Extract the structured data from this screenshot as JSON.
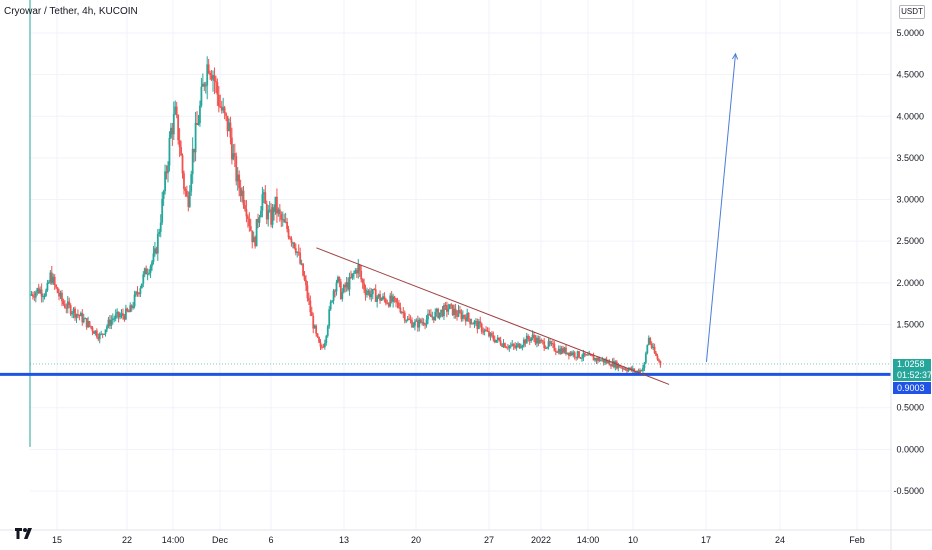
{
  "header": {
    "title": "Cryowar / Tether, 4h, KUCOIN",
    "currency": "USDT"
  },
  "price_tags": {
    "last_price": "1.0258",
    "countdown": "01:52:37",
    "line_price": "0.9003"
  },
  "colors": {
    "up": "#26a69a",
    "down": "#ef5350",
    "hline": "#1e53e5",
    "trend": "#a04040",
    "arrow": "#4a7dd8"
  },
  "chart_data": {
    "type": "candlestick",
    "title": "",
    "xlabel": "",
    "ylabel": "",
    "x_ticks": [
      "15",
      "22",
      "14:00",
      "Dec",
      "6",
      "13",
      "20",
      "27",
      "2022",
      "14:00",
      "10",
      "17",
      "24",
      "Feb"
    ],
    "y_ticks": [
      "5.0000",
      "4.5000",
      "4.0000",
      "3.5000",
      "3.0000",
      "2.5000",
      "2.0000",
      "1.5000",
      "0.5000",
      "0.0000",
      "-0.5000"
    ],
    "ylim": [
      -0.85,
      5.4
    ],
    "x_range": [
      0,
      200
    ],
    "price_path": [
      [
        0,
        1.85
      ],
      [
        2,
        1.92
      ],
      [
        4,
        1.88
      ],
      [
        5,
        2.1
      ],
      [
        6,
        1.95
      ],
      [
        8,
        1.75
      ],
      [
        10,
        1.68
      ],
      [
        12,
        1.6
      ],
      [
        14,
        1.5
      ],
      [
        16,
        1.4
      ],
      [
        17,
        1.35
      ],
      [
        18,
        1.45
      ],
      [
        20,
        1.58
      ],
      [
        22,
        1.6
      ],
      [
        24,
        1.65
      ],
      [
        26,
        1.9
      ],
      [
        28,
        2.15
      ],
      [
        30,
        2.3
      ],
      [
        31,
        2.6
      ],
      [
        32,
        3.0
      ],
      [
        33,
        3.4
      ],
      [
        34,
        3.85
      ],
      [
        35,
        4.0
      ],
      [
        36,
        3.7
      ],
      [
        37,
        3.2
      ],
      [
        38,
        2.95
      ],
      [
        39,
        3.5
      ],
      [
        40,
        3.8
      ],
      [
        41,
        4.1
      ],
      [
        42,
        4.45
      ],
      [
        43,
        4.68
      ],
      [
        44,
        4.55
      ],
      [
        45,
        4.3
      ],
      [
        46,
        4.1
      ],
      [
        47,
        3.95
      ],
      [
        48,
        3.85
      ],
      [
        49,
        3.5
      ],
      [
        50,
        3.2
      ],
      [
        51,
        3.1
      ],
      [
        52,
        2.95
      ],
      [
        53,
        2.7
      ],
      [
        54,
        2.45
      ],
      [
        55,
        2.8
      ],
      [
        56,
        3.05
      ],
      [
        57,
        2.85
      ],
      [
        58,
        2.75
      ],
      [
        59,
        2.95
      ],
      [
        60,
        2.8
      ],
      [
        61,
        2.7
      ],
      [
        62,
        2.65
      ],
      [
        63,
        2.55
      ],
      [
        64,
        2.45
      ],
      [
        65,
        2.25
      ],
      [
        66,
        2.05
      ],
      [
        67,
        1.8
      ],
      [
        68,
        1.55
      ],
      [
        69,
        1.35
      ],
      [
        70,
        1.2
      ],
      [
        71,
        1.3
      ],
      [
        72,
        1.6
      ],
      [
        73,
        1.9
      ],
      [
        74,
        2.05
      ],
      [
        75,
        1.85
      ],
      [
        76,
        1.95
      ],
      [
        77,
        2.0
      ],
      [
        78,
        2.1
      ],
      [
        79,
        2.2
      ],
      [
        80,
        2.0
      ],
      [
        81,
        1.9
      ],
      [
        83,
        1.85
      ],
      [
        85,
        1.8
      ],
      [
        87,
        1.78
      ],
      [
        89,
        1.72
      ],
      [
        91,
        1.55
      ],
      [
        93,
        1.5
      ],
      [
        95,
        1.55
      ],
      [
        97,
        1.6
      ],
      [
        99,
        1.65
      ],
      [
        101,
        1.7
      ],
      [
        103,
        1.62
      ],
      [
        105,
        1.6
      ],
      [
        107,
        1.52
      ],
      [
        109,
        1.45
      ],
      [
        111,
        1.35
      ],
      [
        113,
        1.3
      ],
      [
        115,
        1.25
      ],
      [
        117,
        1.22
      ],
      [
        119,
        1.3
      ],
      [
        121,
        1.35
      ],
      [
        123,
        1.28
      ],
      [
        125,
        1.25
      ],
      [
        127,
        1.2
      ],
      [
        129,
        1.18
      ],
      [
        131,
        1.15
      ],
      [
        133,
        1.12
      ],
      [
        135,
        1.1
      ],
      [
        137,
        1.08
      ],
      [
        139,
        1.05
      ],
      [
        141,
        1.02
      ],
      [
        143,
        0.98
      ],
      [
        145,
        0.95
      ],
      [
        146,
        0.93
      ],
      [
        147,
        0.95
      ],
      [
        148,
        1.0
      ],
      [
        149,
        1.35
      ],
      [
        150,
        1.2
      ],
      [
        151,
        1.1
      ],
      [
        152,
        1.0258
      ]
    ],
    "volatility": 0.04,
    "horizontal_line": 0.9003,
    "trend_line": [
      [
        69,
        2.42
      ],
      [
        154,
        0.78
      ]
    ],
    "arrow": [
      [
        163,
        1.05
      ],
      [
        170,
        4.75
      ]
    ]
  }
}
